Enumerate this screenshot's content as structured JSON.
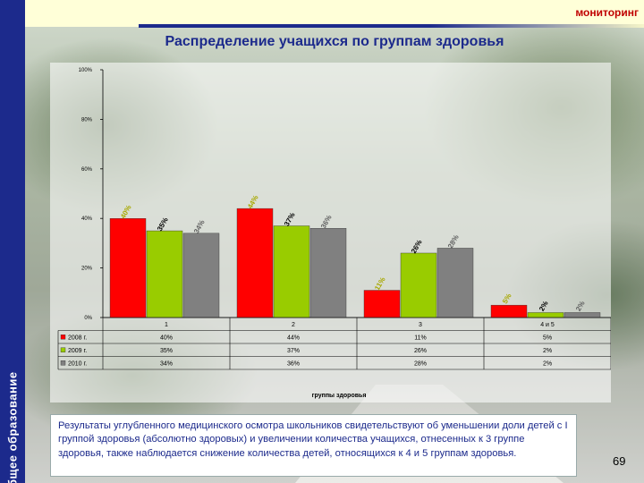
{
  "header": {
    "tag": "мониторинг",
    "sidebar_label": "Общее образование"
  },
  "title": "Распределение учащихся по группам здоровья",
  "chart_data": {
    "type": "bar",
    "categories": [
      "1",
      "2",
      "3",
      "4 и 5"
    ],
    "series": [
      {
        "name": "2008 г.",
        "values": [
          40,
          44,
          11,
          5
        ],
        "labels": [
          "40%",
          "44%",
          "11%",
          "5%"
        ],
        "color": "#ff0000",
        "label_color": "#a8a800"
      },
      {
        "name": "2009 г.",
        "values": [
          35,
          37,
          26,
          2
        ],
        "labels": [
          "35%",
          "37%",
          "26%",
          "2%"
        ],
        "color": "#99cc00",
        "label_color": "#000000"
      },
      {
        "name": "2010 г.",
        "values": [
          34,
          36,
          28,
          2
        ],
        "labels": [
          "34%",
          "36%",
          "28%",
          "2%"
        ],
        "color": "#808080",
        "label_color": "#606060"
      }
    ],
    "yticks": [
      "0%",
      "20%",
      "40%",
      "60%",
      "80%",
      "100%"
    ],
    "ylim": [
      0,
      100
    ],
    "xlabel": "группы здоровья",
    "ylabel": "",
    "grid": false,
    "legend": "data-table"
  },
  "note": "Результаты углубленного медицинского осмотра школьников свидетельствуют об уменьшении доли детей с I группой здоровья (абсолютно здоровых) и увеличении количества учащихся, отнесенных к 3 группе здоровья, также наблюдается снижение количества детей, относящихся к 4 и 5 группам здоровья.",
  "page_number": "69"
}
